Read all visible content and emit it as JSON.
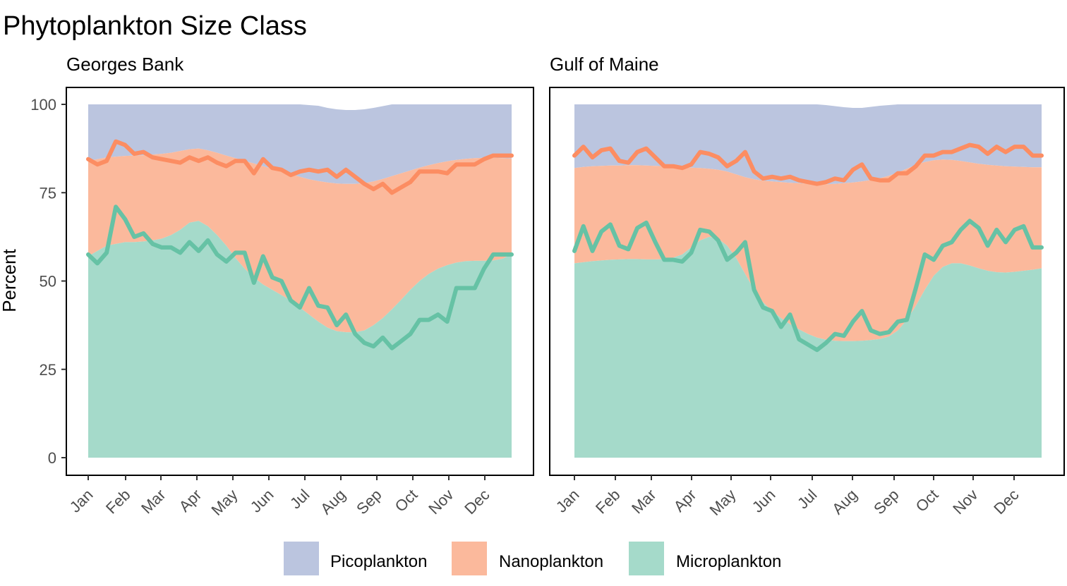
{
  "colors": {
    "pico_fill": "#BBC5DF",
    "nano_fill": "#FBB99C",
    "micro_fill": "#A5DACA",
    "nano_line": "#FC8D62",
    "micro_line": "#66C2A5",
    "frame": "#000000"
  },
  "chart_data": {
    "type": "area",
    "title": "Phytoplankton Size Class",
    "ylabel": "Percent",
    "ylim": [
      0,
      100
    ],
    "yticks": [
      0,
      25,
      50,
      75,
      100
    ],
    "month_ticks": [
      "Jan",
      "Feb",
      "Mar",
      "Apr",
      "May",
      "Jun",
      "Jul",
      "Aug",
      "Sep",
      "Oct",
      "Nov",
      "Dec"
    ],
    "legend": {
      "position": "bottom",
      "entries": [
        "Picoplankton",
        "Nanoplankton",
        "Microplankton"
      ]
    },
    "panels": [
      {
        "name": "Georges Bank",
        "weeks": 47,
        "pico_top": [
          100,
          100,
          100,
          100,
          100,
          100,
          100,
          100,
          100,
          100,
          100,
          100,
          100,
          100,
          100,
          100,
          100,
          100,
          100,
          100,
          100,
          100,
          100,
          100,
          99.8,
          99.6,
          99.0,
          98.6,
          98.4,
          98.4,
          98.6,
          99.0,
          99.5,
          100,
          100,
          100,
          100,
          100,
          100,
          100,
          100,
          100,
          100,
          100,
          100,
          100,
          100
        ],
        "nano_fill_top": [
          84,
          84.5,
          85,
          85.2,
          85.4,
          85.5,
          85.6,
          85.8,
          86,
          86.3,
          86.8,
          87.3,
          87.5,
          87,
          86.3,
          85.5,
          84.8,
          84,
          83.3,
          82.5,
          81.8,
          81,
          80.3,
          79.5,
          78.8,
          78.3,
          77.9,
          77.6,
          77.5,
          77.5,
          77.7,
          78.2,
          78.9,
          79.7,
          80.5,
          81.3,
          82.1,
          82.8,
          83.4,
          83.9,
          84.3,
          84.6,
          84.8,
          84.9,
          84.9,
          84.8,
          84.7
        ],
        "micro_fill_top": [
          57,
          58.5,
          60,
          60.5,
          61,
          61,
          61.2,
          61.5,
          62,
          63,
          64.5,
          66.5,
          67,
          65.5,
          63,
          60,
          56.5,
          53.5,
          51,
          49,
          47.5,
          46,
          44.5,
          42.5,
          40.5,
          38.5,
          36.8,
          35.8,
          35.5,
          35.5,
          36,
          37.5,
          39.5,
          42,
          44.7,
          47.5,
          50,
          52,
          53.5,
          54.5,
          55.2,
          55.6,
          55.7,
          55.7,
          55.8,
          56.3,
          57.5
        ],
        "nano_line": [
          84.5,
          83,
          84,
          89.5,
          88.5,
          86,
          86.5,
          85,
          84.5,
          84,
          83.5,
          85,
          84,
          85,
          83.5,
          82.5,
          84,
          84,
          80.5,
          84.5,
          82,
          81.5,
          80,
          81,
          81.5,
          81,
          81.5,
          79.5,
          81.5,
          79.5,
          77.5,
          76,
          77.5,
          75,
          76.5,
          78,
          81,
          81,
          81,
          80.5,
          83,
          83,
          83,
          84.5,
          85.5,
          85.5,
          85.5
        ],
        "micro_line": [
          57.5,
          55,
          58,
          71,
          67.5,
          62.5,
          63.5,
          60.5,
          59.5,
          59.5,
          58,
          61,
          58.5,
          61.5,
          57.5,
          55.5,
          58,
          58,
          49.5,
          57,
          51,
          50,
          44.5,
          42.5,
          48,
          43,
          42.5,
          37.5,
          40.5,
          35,
          32.5,
          31.5,
          34,
          31,
          33,
          35,
          39,
          39,
          40.5,
          38.5,
          48,
          48,
          48,
          53.5,
          57.5,
          57.5,
          57.5
        ]
      },
      {
        "name": "Gulf of Maine",
        "weeks": 53,
        "pico_top": [
          100,
          100,
          100,
          100,
          100,
          100,
          100,
          100,
          100,
          100,
          100,
          100,
          100,
          100,
          100,
          100,
          100,
          100,
          100,
          100,
          100,
          100,
          100,
          100,
          100,
          100,
          100,
          100,
          99.8,
          99.5,
          99.2,
          99.0,
          99.0,
          99.3,
          99.6,
          99.8,
          100,
          100,
          100,
          100,
          100,
          100,
          100,
          100,
          100,
          100,
          100,
          100,
          100,
          100,
          100,
          100,
          100
        ],
        "nano_fill_top": [
          82,
          82.3,
          82.5,
          82.6,
          82.7,
          82.7,
          82.8,
          82.8,
          82.7,
          82.6,
          82.5,
          82.3,
          82.2,
          82.1,
          82,
          81.8,
          81.5,
          81,
          80.2,
          79.4,
          78.8,
          78.4,
          78.2,
          78.0,
          77.8,
          77.7,
          77.5,
          77.4,
          77.4,
          77.5,
          77.7,
          77.9,
          78.2,
          78.6,
          79.1,
          79.8,
          80.7,
          81.8,
          82.9,
          83.7,
          84.2,
          84.4,
          84.3,
          84.0,
          83.6,
          83.2,
          82.9,
          82.7,
          82.5,
          82.4,
          82.3,
          82.2,
          82.2
        ],
        "micro_fill_top": [
          55,
          55.3,
          55.6,
          55.8,
          56,
          56.1,
          56.2,
          56.2,
          56.1,
          56.1,
          56.2,
          56.6,
          57.5,
          59.5,
          61.5,
          62.5,
          62,
          60,
          56.5,
          52,
          47.5,
          44,
          41.5,
          39.5,
          37.8,
          36.3,
          35,
          34,
          33.4,
          33.1,
          33,
          33,
          33.1,
          33.3,
          33.6,
          34.3,
          36,
          39,
          43,
          47.5,
          51.5,
          54,
          55,
          55,
          54.4,
          53.6,
          52.9,
          52.5,
          52.4,
          52.6,
          52.9,
          53.2,
          53.6
        ],
        "nano_line": [
          85.5,
          88,
          85,
          87,
          87.5,
          84,
          83.5,
          86.5,
          87.5,
          85,
          82.5,
          82.5,
          82,
          83,
          86.5,
          86,
          85,
          82.5,
          84,
          86.5,
          81,
          79,
          79.5,
          79,
          79.5,
          78.5,
          78,
          77.5,
          78,
          79,
          78.5,
          81.5,
          83,
          79,
          78.5,
          78.5,
          80.5,
          80.5,
          82.5,
          85.5,
          85.5,
          86.5,
          86.5,
          87.5,
          88.5,
          88,
          86,
          88,
          86.5,
          88,
          88,
          85.5,
          85.5
        ],
        "micro_line": [
          58.5,
          65.5,
          58.5,
          64,
          66,
          60,
          59,
          65,
          66.5,
          61,
          56,
          56,
          55.5,
          58,
          64.5,
          64,
          61.5,
          56,
          58,
          61,
          47.5,
          42.5,
          41.5,
          37,
          40.5,
          33.5,
          32,
          30.5,
          32.5,
          35,
          34.5,
          38.5,
          41.5,
          36,
          35,
          35.5,
          38.5,
          39,
          48,
          57.5,
          56,
          60,
          61,
          64.5,
          67,
          65,
          60,
          64.5,
          61,
          64.5,
          65.5,
          59.5,
          59.5
        ]
      }
    ]
  }
}
